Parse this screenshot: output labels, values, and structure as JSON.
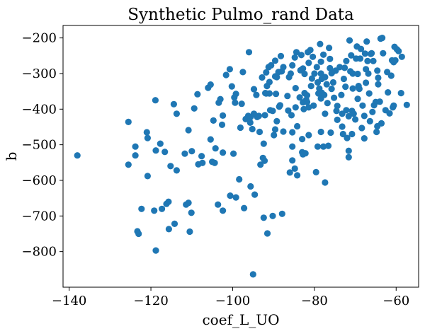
{
  "chart_data": {
    "type": "scatter",
    "title": "Synthetic Pulmo_rand Data",
    "xlabel": "coef_L_UO",
    "ylabel": "b",
    "xlim": [
      -141.5,
      -54.5
    ],
    "ylim": [
      -900,
      -165
    ],
    "xticks": [
      -140,
      -120,
      -100,
      -80,
      -60
    ],
    "xtick_labels": [
      "−140",
      "−120",
      "−100",
      "−80",
      "−60"
    ],
    "yticks": [
      -800,
      -700,
      -600,
      -500,
      -400,
      -300,
      -200
    ],
    "ytick_labels": [
      "−800",
      "−700",
      "−600",
      "−500",
      "−400",
      "−300",
      "−200"
    ],
    "grid": false,
    "marker_color": "#1f77b4",
    "points": [
      [
        -138,
        -530
      ],
      [
        -125.5,
        -436
      ],
      [
        -125.5,
        -556
      ],
      [
        -123.8,
        -505
      ],
      [
        -123.8,
        -530
      ],
      [
        -123.3,
        -743
      ],
      [
        -123,
        -750
      ],
      [
        -122.3,
        -680
      ],
      [
        -121,
        -465
      ],
      [
        -120.8,
        -481
      ],
      [
        -120.8,
        -588
      ],
      [
        -119.2,
        -685
      ],
      [
        -118.9,
        -375
      ],
      [
        -118.8,
        -516
      ],
      [
        -118.8,
        -797
      ],
      [
        -117.7,
        -497
      ],
      [
        -117.3,
        -680
      ],
      [
        -116.6,
        -520
      ],
      [
        -116.2,
        -666
      ],
      [
        -115.7,
        -660
      ],
      [
        -115.6,
        -737
      ],
      [
        -115.2,
        -560
      ],
      [
        -114.4,
        -386
      ],
      [
        -114.2,
        -722
      ],
      [
        -113.7,
        -413
      ],
      [
        -113.7,
        -572
      ],
      [
        -111.7,
        -525
      ],
      [
        -111.4,
        -668
      ],
      [
        -110.8,
        -663
      ],
      [
        -110.8,
        -459
      ],
      [
        -110.5,
        -744
      ],
      [
        -110.1,
        -691
      ],
      [
        -110,
        -518
      ],
      [
        -109.4,
        -398
      ],
      [
        -108.6,
        -358
      ],
      [
        -108.4,
        -555
      ],
      [
        -107.6,
        -532
      ],
      [
        -107.4,
        -551
      ],
      [
        -106,
        -340
      ],
      [
        -105.4,
        -331
      ],
      [
        -105.4,
        -485
      ],
      [
        -105,
        -548
      ],
      [
        -104.7,
        -432
      ],
      [
        -104.4,
        -551
      ],
      [
        -104.2,
        -510
      ],
      [
        -103.6,
        -668
      ],
      [
        -103.4,
        -382
      ],
      [
        -103,
        -372
      ],
      [
        -102.6,
        -444
      ],
      [
        -102.4,
        -418
      ],
      [
        -102.4,
        -685
      ],
      [
        -102.4,
        -522
      ],
      [
        -101.6,
        -304
      ],
      [
        -100.7,
        -288
      ],
      [
        -100.6,
        -643
      ],
      [
        -100.2,
        -336
      ],
      [
        -99.8,
        -525
      ],
      [
        -99.6,
        -367
      ],
      [
        -99.4,
        -382
      ],
      [
        -99.2,
        -357
      ],
      [
        -99.2,
        -648
      ],
      [
        -98.4,
        -597
      ],
      [
        -98.1,
        -452
      ],
      [
        -97.8,
        -385
      ],
      [
        -97.5,
        -296
      ],
      [
        -97.2,
        -678
      ],
      [
        -96.8,
        -428
      ],
      [
        -96.2,
        -419
      ],
      [
        -96,
        -240
      ],
      [
        -95.7,
        -438
      ],
      [
        -95.6,
        -422
      ],
      [
        -95.6,
        -617
      ],
      [
        -95.2,
        -456
      ],
      [
        -95,
        -864
      ],
      [
        -94.8,
        -344
      ],
      [
        -94.8,
        -413
      ],
      [
        -94.6,
        -640
      ],
      [
        -94.2,
        -360
      ],
      [
        -94,
        -422
      ],
      [
        -93.6,
        -419
      ],
      [
        -93.4,
        -464
      ],
      [
        -93.2,
        -556
      ],
      [
        -92.8,
        -311
      ],
      [
        -92.6,
        -537
      ],
      [
        -92.4,
        -497
      ],
      [
        -92.4,
        -705
      ],
      [
        -92.2,
        -545
      ],
      [
        -92.1,
        -417
      ],
      [
        -92,
        -355
      ],
      [
        -91.8,
        -297
      ],
      [
        -91.8,
        -356
      ],
      [
        -91.6,
        -335
      ],
      [
        -91.5,
        -749
      ],
      [
        -91.2,
        -282
      ],
      [
        -91,
        -324
      ],
      [
        -91,
        -356
      ],
      [
        -90.8,
        -403
      ],
      [
        -90.6,
        -277
      ],
      [
        -90.2,
        -405
      ],
      [
        -90.2,
        -700
      ],
      [
        -89.9,
        -473
      ],
      [
        -89.6,
        -457
      ],
      [
        -89.6,
        -264
      ],
      [
        -89.6,
        -308
      ],
      [
        -89.4,
        -357
      ],
      [
        -89.2,
        -310
      ],
      [
        -89.2,
        -434
      ],
      [
        -88.8,
        -296
      ],
      [
        -88.6,
        -393
      ],
      [
        -88.4,
        -389
      ],
      [
        -88.2,
        -251
      ],
      [
        -88,
        -294
      ],
      [
        -87.9,
        -694
      ],
      [
        -87.6,
        -282
      ],
      [
        -87.6,
        -463
      ],
      [
        -86.6,
        -363
      ],
      [
        -86.4,
        -404
      ],
      [
        -86.2,
        -310
      ],
      [
        -86,
        -578
      ],
      [
        -85.8,
        -300
      ],
      [
        -85.6,
        -417
      ],
      [
        -85.4,
        -277
      ],
      [
        -85.4,
        -465
      ],
      [
        -85.4,
        -505
      ],
      [
        -85.4,
        -544
      ],
      [
        -84.8,
        -567
      ],
      [
        -84.8,
        -255
      ],
      [
        -84.6,
        -341
      ],
      [
        -84.6,
        -395
      ],
      [
        -84.4,
        -240
      ],
      [
        -84.2,
        -448
      ],
      [
        -84.2,
        -586
      ],
      [
        -83.6,
        -367
      ],
      [
        -83.4,
        -291
      ],
      [
        -83.2,
        -248
      ],
      [
        -83,
        -484
      ],
      [
        -83,
        -521
      ],
      [
        -82.8,
        -286
      ],
      [
        -82.8,
        -527
      ],
      [
        -82.8,
        -381
      ],
      [
        -82.6,
        -400
      ],
      [
        -82.4,
        -355
      ],
      [
        -82.4,
        -301
      ],
      [
        -82.2,
        -524
      ],
      [
        -82,
        -374
      ],
      [
        -81.8,
        -380
      ],
      [
        -81.8,
        -361
      ],
      [
        -81.6,
        -240
      ],
      [
        -81.4,
        -270
      ],
      [
        -81.4,
        -395
      ],
      [
        -81.4,
        -473
      ],
      [
        -81,
        -234
      ],
      [
        -80.8,
        -335
      ],
      [
        -80.6,
        -314
      ],
      [
        -80.4,
        -253
      ],
      [
        -80.2,
        -390
      ],
      [
        -80,
        -300
      ],
      [
        -79.6,
        -577
      ],
      [
        -79.4,
        -282
      ],
      [
        -79.2,
        -505
      ],
      [
        -79.2,
        -325
      ],
      [
        -79,
        -356
      ],
      [
        -78.8,
        -342
      ],
      [
        -78.6,
        -217
      ],
      [
        -78.4,
        -267
      ],
      [
        -78.4,
        -300
      ],
      [
        -78.4,
        -370
      ],
      [
        -78.4,
        -464
      ],
      [
        -78.2,
        -315
      ],
      [
        -78.2,
        -354
      ],
      [
        -77.8,
        -247
      ],
      [
        -77.8,
        -505
      ],
      [
        -77.6,
        -360
      ],
      [
        -77.4,
        -310
      ],
      [
        -77.4,
        -413
      ],
      [
        -77.4,
        -606
      ],
      [
        -77,
        -330
      ],
      [
        -76.8,
        -383
      ],
      [
        -76.6,
        -503
      ],
      [
        -76.4,
        -228
      ],
      [
        -76.2,
        -259
      ],
      [
        -76.2,
        -285
      ],
      [
        -76,
        -466
      ],
      [
        -75.8,
        -299
      ],
      [
        -75.8,
        -343
      ],
      [
        -75.6,
        -296
      ],
      [
        -75.4,
        -325
      ],
      [
        -75.2,
        -368
      ],
      [
        -74.8,
        -292
      ],
      [
        -74.6,
        -405
      ],
      [
        -74.4,
        -391
      ],
      [
        -74.4,
        -430
      ],
      [
        -73.8,
        -282
      ],
      [
        -73.4,
        -360
      ],
      [
        -73.2,
        -413
      ],
      [
        -73.2,
        -449
      ],
      [
        -73,
        -470
      ],
      [
        -72.8,
        -315
      ],
      [
        -72.6,
        -284
      ],
      [
        -72.4,
        -337
      ],
      [
        -72.2,
        -265
      ],
      [
        -72.2,
        -403
      ],
      [
        -72,
        -481
      ],
      [
        -71.6,
        -420
      ],
      [
        -71.6,
        -517
      ],
      [
        -71.6,
        -535
      ],
      [
        -71.4,
        -207
      ],
      [
        -71.2,
        -294
      ],
      [
        -71,
        -249
      ],
      [
        -70.8,
        -405
      ],
      [
        -70.8,
        -470
      ],
      [
        -70.6,
        -300
      ],
      [
        -70.6,
        -342
      ],
      [
        -70.4,
        -413
      ],
      [
        -70,
        -429
      ],
      [
        -69.8,
        -258
      ],
      [
        -69.6,
        -224
      ],
      [
        -69.4,
        -301
      ],
      [
        -69.4,
        -371
      ],
      [
        -69.2,
        -335
      ],
      [
        -69,
        -343
      ],
      [
        -68.8,
        -258
      ],
      [
        -68.6,
        -231
      ],
      [
        -68.4,
        -453
      ],
      [
        -68.2,
        -390
      ],
      [
        -67.8,
        -419
      ],
      [
        -67.8,
        -482
      ],
      [
        -67.6,
        -244
      ],
      [
        -67.4,
        -288
      ],
      [
        -67.4,
        -326
      ],
      [
        -67.2,
        -210
      ],
      [
        -67,
        -265
      ],
      [
        -66.8,
        -300
      ],
      [
        -66.6,
        -356
      ],
      [
        -66.4,
        -434
      ],
      [
        -66.2,
        -245
      ],
      [
        -66,
        -243
      ],
      [
        -65.8,
        -408
      ],
      [
        -65.6,
        -265
      ],
      [
        -65.4,
        -389
      ],
      [
        -65,
        -380
      ],
      [
        -64.8,
        -464
      ],
      [
        -64.6,
        -292
      ],
      [
        -64.6,
        -448
      ],
      [
        -64.4,
        -312
      ],
      [
        -64.4,
        -330
      ],
      [
        -64,
        -379
      ],
      [
        -63.8,
        -202
      ],
      [
        -63.6,
        -440
      ],
      [
        -63.4,
        -200
      ],
      [
        -63.2,
        -243
      ],
      [
        -62.6,
        -403
      ],
      [
        -62.2,
        -296
      ],
      [
        -62,
        -353
      ],
      [
        -61.6,
        -412
      ],
      [
        -61.2,
        -306
      ],
      [
        -61,
        -263
      ],
      [
        -60.8,
        -395
      ],
      [
        -60.6,
        -390
      ],
      [
        -60.6,
        -268
      ],
      [
        -60.4,
        -225
      ],
      [
        -60.2,
        -263
      ],
      [
        -59.8,
        -232
      ],
      [
        -59.4,
        -237
      ],
      [
        -58.8,
        -355
      ],
      [
        -58.6,
        -253
      ],
      [
        -57.4,
        -388
      ]
    ]
  }
}
